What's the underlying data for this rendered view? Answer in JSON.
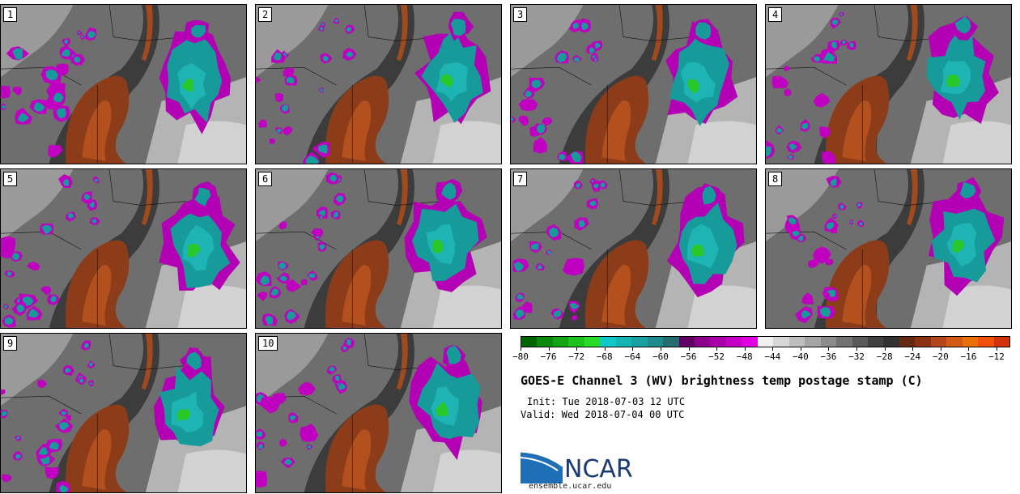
{
  "panels": [
    {
      "label": "1"
    },
    {
      "label": "2"
    },
    {
      "label": "3"
    },
    {
      "label": "4"
    },
    {
      "label": "5"
    },
    {
      "label": "6"
    },
    {
      "label": "7"
    },
    {
      "label": "8"
    },
    {
      "label": "9"
    },
    {
      "label": "10"
    }
  ],
  "colorbar": {
    "colors": [
      "#006400",
      "#0a8a0a",
      "#14a514",
      "#1ec21e",
      "#28dc28",
      "#0fc8c8",
      "#14b4b4",
      "#19a0a0",
      "#1e8c8c",
      "#236e6e",
      "#640064",
      "#8c008c",
      "#a800a8",
      "#c300c3",
      "#e100e1",
      "#f0f0f0",
      "#d7d7d7",
      "#bebebe",
      "#a5a5a5",
      "#8c8c8c",
      "#737373",
      "#5a5a5a",
      "#414141",
      "#323232",
      "#642814",
      "#8c3214",
      "#b4461e",
      "#d25a14",
      "#eb6e0a",
      "#f0500a",
      "#d2320a"
    ],
    "tick_labels": [
      "−80",
      "−76",
      "−72",
      "−68",
      "−64",
      "−60",
      "−56",
      "−52",
      "−48",
      "−44",
      "−40",
      "−36",
      "−32",
      "−28",
      "−24",
      "−20",
      "−16",
      "−12"
    ]
  },
  "title": "GOES-E Channel 3 (WV) brightness temp postage stamp (C)",
  "init_label": "Init:",
  "init_value": "Tue 2018-07-03 12 UTC",
  "valid_label": "Valid:",
  "valid_value": "Wed 2018-07-04 00 UTC",
  "logo_text": "NCAR",
  "url": "ensemble.ucar.edu"
}
